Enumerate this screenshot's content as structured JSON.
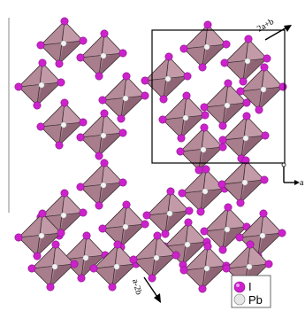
{
  "labels": {
    "axis_2a_b": "2a+b",
    "axis_a_2b": "a-2b",
    "axis_a": "a"
  },
  "legend": {
    "iodine_label": "I",
    "lead_label": "Pb"
  },
  "colors": {
    "iodine": "#cc22cc",
    "lead": "#dddddd",
    "octahedron": "#a87d8c"
  }
}
